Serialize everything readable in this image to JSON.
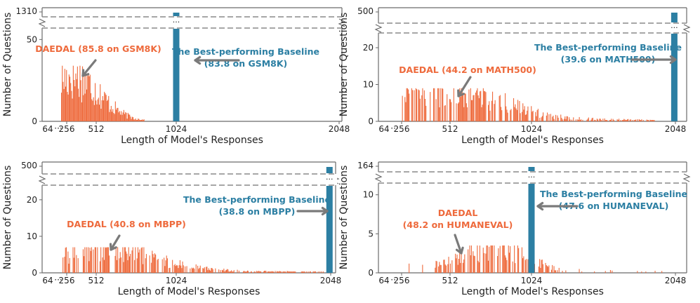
{
  "colors": {
    "daedal": "#ee6a3c",
    "baseline": "#2c7fa3",
    "axis": "#6a6a6a",
    "gap_line": "#8a8a8a",
    "text": "#222222"
  },
  "chart_data": [
    {
      "type": "bar",
      "benchmark": "GSM8K",
      "xlabel": "Length of Model's Responses",
      "ylabel": "Number of Questions",
      "x_tick_labels": [
        "64",
        "···",
        "256",
        "512",
        "1024",
        "2048"
      ],
      "x_ticks": [
        256,
        512,
        1024,
        2048
      ],
      "xlim": [
        0,
        2048
      ],
      "y_tick_labels_lower": [
        "0",
        "50"
      ],
      "y_ticks_lower": [
        0,
        50
      ],
      "lower_ylim": [
        0,
        57
      ],
      "break_label": "1310",
      "break_ellipsis": "···",
      "daedal_label": [
        "DAEDAL (85.8 on GSM8K)"
      ],
      "baseline_label": [
        "The Best-performing Baseline",
        "(83.8 on GSM8K)"
      ],
      "baseline_bar": {
        "length": 1024,
        "count": 1310
      },
      "daedal_peak": {
        "length": 310,
        "count": 34
      },
      "daedal_range": [
        180,
        820
      ]
    },
    {
      "type": "bar",
      "benchmark": "MATH500",
      "xlabel": "Length of Model's Responses",
      "ylabel": "Number of Questions",
      "x_tick_labels": [
        "64",
        "···",
        "256",
        "512",
        "1024",
        "2048"
      ],
      "x_ticks": [
        256,
        512,
        1024,
        2048
      ],
      "xlim": [
        0,
        2048
      ],
      "y_tick_labels_lower": [
        "0",
        "10",
        "20"
      ],
      "y_ticks_lower": [
        0,
        10,
        20
      ],
      "lower_ylim": [
        0,
        24
      ],
      "break_label": "500",
      "break_ellipsis": "···",
      "daedal_label": [
        "DAEDAL (44.2 on MATH500)"
      ],
      "baseline_label": [
        "The Best-performing Baseline",
        "(39.6 on MATH500)"
      ],
      "baseline_bar": {
        "length": 2040,
        "count": 500
      },
      "daedal_peak": {
        "length": 520,
        "count": 9
      },
      "daedal_range": [
        250,
        1900
      ]
    },
    {
      "type": "bar",
      "benchmark": "MBPP",
      "xlabel": "Length of Model's Responses",
      "ylabel": "Number of Questions",
      "x_tick_labels": [
        "64",
        "···",
        "256",
        "512",
        "1024",
        "2048"
      ],
      "x_ticks": [
        256,
        512,
        1024,
        2048
      ],
      "xlim": [
        0,
        2048
      ],
      "y_tick_labels_lower": [
        "0",
        "10",
        "20"
      ],
      "y_ticks_lower": [
        0,
        10,
        20
      ],
      "lower_ylim": [
        0,
        24
      ],
      "break_label": "500",
      "break_ellipsis": "···",
      "daedal_label": [
        "DAEDAL (40.8 on MBPP)"
      ],
      "baseline_label": [
        "The Best-performing Baseline",
        "(38.8 on MBPP)"
      ],
      "baseline_bar": {
        "length": 2040,
        "count": 500
      },
      "daedal_peak": {
        "length": 560,
        "count": 7
      },
      "daedal_range": [
        200,
        2000
      ]
    },
    {
      "type": "bar",
      "benchmark": "HUMANEVAL",
      "xlabel": "Length of Model's Responses",
      "ylabel": "Number of Questions",
      "x_tick_labels": [
        "64",
        "···",
        "256",
        "512",
        "1024",
        "2048"
      ],
      "x_ticks": [
        256,
        512,
        1024,
        2048
      ],
      "xlim": [
        0,
        2048
      ],
      "y_tick_labels_lower": [
        "0",
        "5",
        "10"
      ],
      "y_ticks_lower": [
        0,
        5,
        10
      ],
      "lower_ylim": [
        0,
        11.5
      ],
      "break_label": "164",
      "break_ellipsis": "···",
      "daedal_label": [
        "DAEDAL",
        "(48.2 on HUMANEVAL)"
      ],
      "baseline_label": [
        "The Best-performing Baseline",
        "(47.6 on HUMANEVAL)"
      ],
      "baseline_bar": {
        "length": 1024,
        "count": 164
      },
      "daedal_peak": {
        "length": 800,
        "count": 3.5
      },
      "daedal_range": [
        200,
        2048
      ]
    }
  ]
}
